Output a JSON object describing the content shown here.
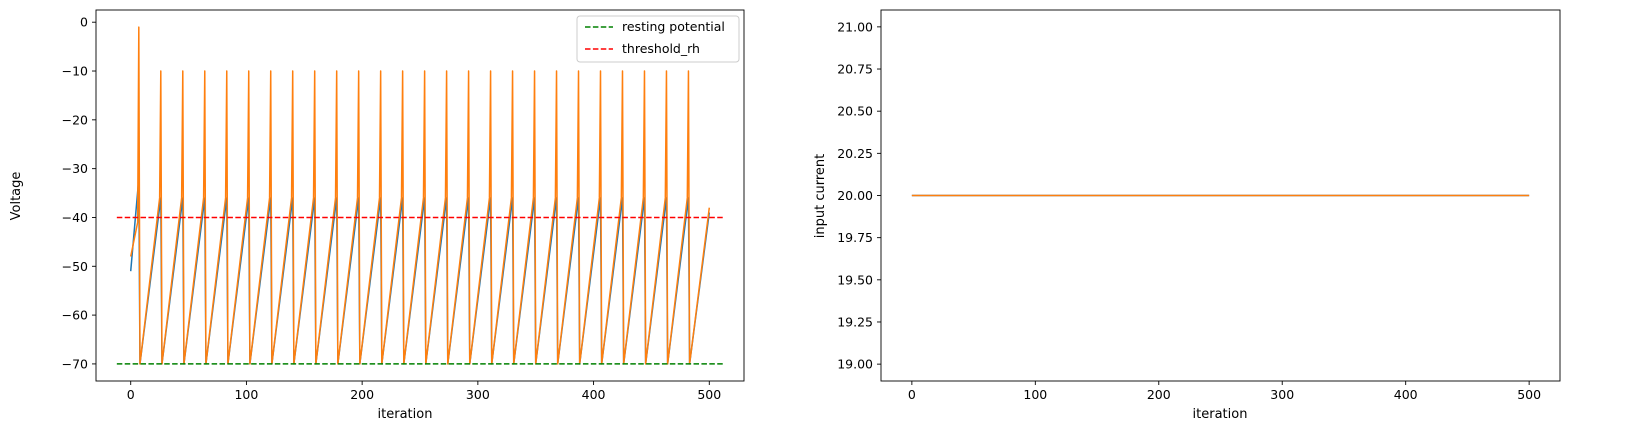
{
  "chart_data": [
    {
      "type": "line",
      "xlabel": "iteration",
      "ylabel": "Voltage",
      "xlim": [
        -30,
        530
      ],
      "ylim": [
        -73.5,
        2.5
      ],
      "xticks": [
        0,
        100,
        200,
        300,
        400,
        500
      ],
      "xtick_labels": [
        "0",
        "100",
        "200",
        "300",
        "400",
        "500"
      ],
      "yticks": [
        0,
        -10,
        -20,
        -30,
        -40,
        -50,
        -60,
        -70
      ],
      "ytick_labels": [
        "0",
        "−10",
        "−20",
        "−30",
        "−40",
        "−50",
        "−60",
        "−70"
      ],
      "grid": false,
      "legend": "top-right",
      "series": [
        {
          "color": "#1f77b4",
          "spike_iterations": [
            7,
            26,
            45,
            64,
            83,
            102,
            121,
            140,
            159,
            178,
            197,
            216,
            235,
            254,
            273,
            292,
            311,
            330,
            349,
            368,
            387,
            406,
            425,
            444,
            463,
            482
          ],
          "points": [
            [
              0,
              -51
            ],
            [
              7,
              -32
            ],
            [
              8,
              -70
            ],
            [
              26,
              -36
            ],
            [
              27,
              -70
            ],
            [
              45,
              -36
            ],
            [
              46,
              -70
            ],
            [
              64,
              -36
            ],
            [
              65,
              -70
            ],
            [
              83,
              -36
            ],
            [
              84,
              -70
            ],
            [
              102,
              -36
            ],
            [
              103,
              -70
            ],
            [
              121,
              -36
            ],
            [
              122,
              -70
            ],
            [
              140,
              -36
            ],
            [
              141,
              -70
            ],
            [
              159,
              -36
            ],
            [
              160,
              -70
            ],
            [
              178,
              -36
            ],
            [
              179,
              -70
            ],
            [
              197,
              -36
            ],
            [
              198,
              -70
            ],
            [
              216,
              -36
            ],
            [
              217,
              -70
            ],
            [
              235,
              -36
            ],
            [
              236,
              -70
            ],
            [
              254,
              -36
            ],
            [
              255,
              -70
            ],
            [
              273,
              -36
            ],
            [
              274,
              -70
            ],
            [
              292,
              -36
            ],
            [
              293,
              -70
            ],
            [
              311,
              -36
            ],
            [
              312,
              -70
            ],
            [
              330,
              -36
            ],
            [
              331,
              -70
            ],
            [
              349,
              -36
            ],
            [
              350,
              -70
            ],
            [
              368,
              -36
            ],
            [
              369,
              -70
            ],
            [
              387,
              -36
            ],
            [
              388,
              -70
            ],
            [
              406,
              -36
            ],
            [
              407,
              -70
            ],
            [
              425,
              -36
            ],
            [
              426,
              -70
            ],
            [
              444,
              -36
            ],
            [
              445,
              -70
            ],
            [
              463,
              -36
            ],
            [
              464,
              -70
            ],
            [
              482,
              -36
            ],
            [
              483,
              -70
            ],
            [
              500,
              -39
            ]
          ]
        },
        {
          "color": "#ff7f0e",
          "spike_iterations": [
            7,
            26,
            45,
            64,
            83,
            102,
            121,
            140,
            159,
            178,
            197,
            216,
            235,
            254,
            273,
            292,
            311,
            330,
            349,
            368,
            387,
            406,
            425,
            444,
            463,
            482
          ],
          "points": [
            [
              0,
              -48
            ],
            [
              6,
              -41
            ],
            [
              7,
              -1
            ],
            [
              8,
              -70
            ],
            [
              25,
              -36
            ],
            [
              26,
              -10
            ],
            [
              27,
              -70
            ],
            [
              44,
              -36
            ],
            [
              45,
              -10
            ],
            [
              46,
              -70
            ],
            [
              63,
              -36
            ],
            [
              64,
              -10
            ],
            [
              65,
              -70
            ],
            [
              82,
              -36
            ],
            [
              83,
              -10
            ],
            [
              84,
              -70
            ],
            [
              101,
              -36
            ],
            [
              102,
              -10
            ],
            [
              103,
              -70
            ],
            [
              120,
              -36
            ],
            [
              121,
              -10
            ],
            [
              122,
              -70
            ],
            [
              139,
              -36
            ],
            [
              140,
              -10
            ],
            [
              141,
              -70
            ],
            [
              158,
              -36
            ],
            [
              159,
              -10
            ],
            [
              160,
              -70
            ],
            [
              177,
              -36
            ],
            [
              178,
              -10
            ],
            [
              179,
              -70
            ],
            [
              196,
              -36
            ],
            [
              197,
              -10
            ],
            [
              198,
              -70
            ],
            [
              215,
              -36
            ],
            [
              216,
              -10
            ],
            [
              217,
              -70
            ],
            [
              234,
              -36
            ],
            [
              235,
              -10
            ],
            [
              236,
              -70
            ],
            [
              253,
              -36
            ],
            [
              254,
              -10
            ],
            [
              255,
              -70
            ],
            [
              272,
              -36
            ],
            [
              273,
              -10
            ],
            [
              274,
              -70
            ],
            [
              291,
              -36
            ],
            [
              292,
              -10
            ],
            [
              293,
              -70
            ],
            [
              310,
              -36
            ],
            [
              311,
              -10
            ],
            [
              312,
              -70
            ],
            [
              329,
              -36
            ],
            [
              330,
              -10
            ],
            [
              331,
              -70
            ],
            [
              348,
              -36
            ],
            [
              349,
              -10
            ],
            [
              350,
              -70
            ],
            [
              367,
              -36
            ],
            [
              368,
              -10
            ],
            [
              369,
              -70
            ],
            [
              386,
              -36
            ],
            [
              387,
              -10
            ],
            [
              388,
              -70
            ],
            [
              405,
              -36
            ],
            [
              406,
              -10
            ],
            [
              407,
              -70
            ],
            [
              424,
              -36
            ],
            [
              425,
              -10
            ],
            [
              426,
              -70
            ],
            [
              443,
              -36
            ],
            [
              444,
              -10
            ],
            [
              445,
              -70
            ],
            [
              462,
              -36
            ],
            [
              463,
              -10
            ],
            [
              464,
              -70
            ],
            [
              481,
              -36
            ],
            [
              482,
              -10
            ],
            [
              483,
              -70
            ],
            [
              500,
              -38
            ]
          ]
        },
        {
          "name": "resting potential",
          "color": "#008000",
          "dashed": true,
          "points": [
            [
              -12,
              -70
            ],
            [
              512,
              -70
            ]
          ]
        },
        {
          "name": "threshold_rh",
          "color": "#ff0000",
          "dashed": true,
          "points": [
            [
              -12,
              -40
            ],
            [
              512,
              -40
            ]
          ]
        }
      ]
    },
    {
      "type": "line",
      "xlabel": "iteration",
      "ylabel": "input current",
      "xlim": [
        -25,
        525
      ],
      "ylim": [
        18.9,
        21.1
      ],
      "xticks": [
        0,
        100,
        200,
        300,
        400,
        500
      ],
      "xtick_labels": [
        "0",
        "100",
        "200",
        "300",
        "400",
        "500"
      ],
      "yticks": [
        19.0,
        19.25,
        19.5,
        19.75,
        20.0,
        20.25,
        20.5,
        20.75,
        21.0
      ],
      "ytick_labels": [
        "19.00",
        "19.25",
        "19.50",
        "19.75",
        "20.00",
        "20.25",
        "20.50",
        "20.75",
        "21.00"
      ],
      "grid": false,
      "series": [
        {
          "color": "#1f77b4",
          "points": [
            [
              0,
              20
            ],
            [
              500,
              20
            ]
          ]
        },
        {
          "color": "#ff7f0e",
          "points": [
            [
              0,
              20
            ],
            [
              500,
              20
            ]
          ]
        }
      ]
    }
  ]
}
